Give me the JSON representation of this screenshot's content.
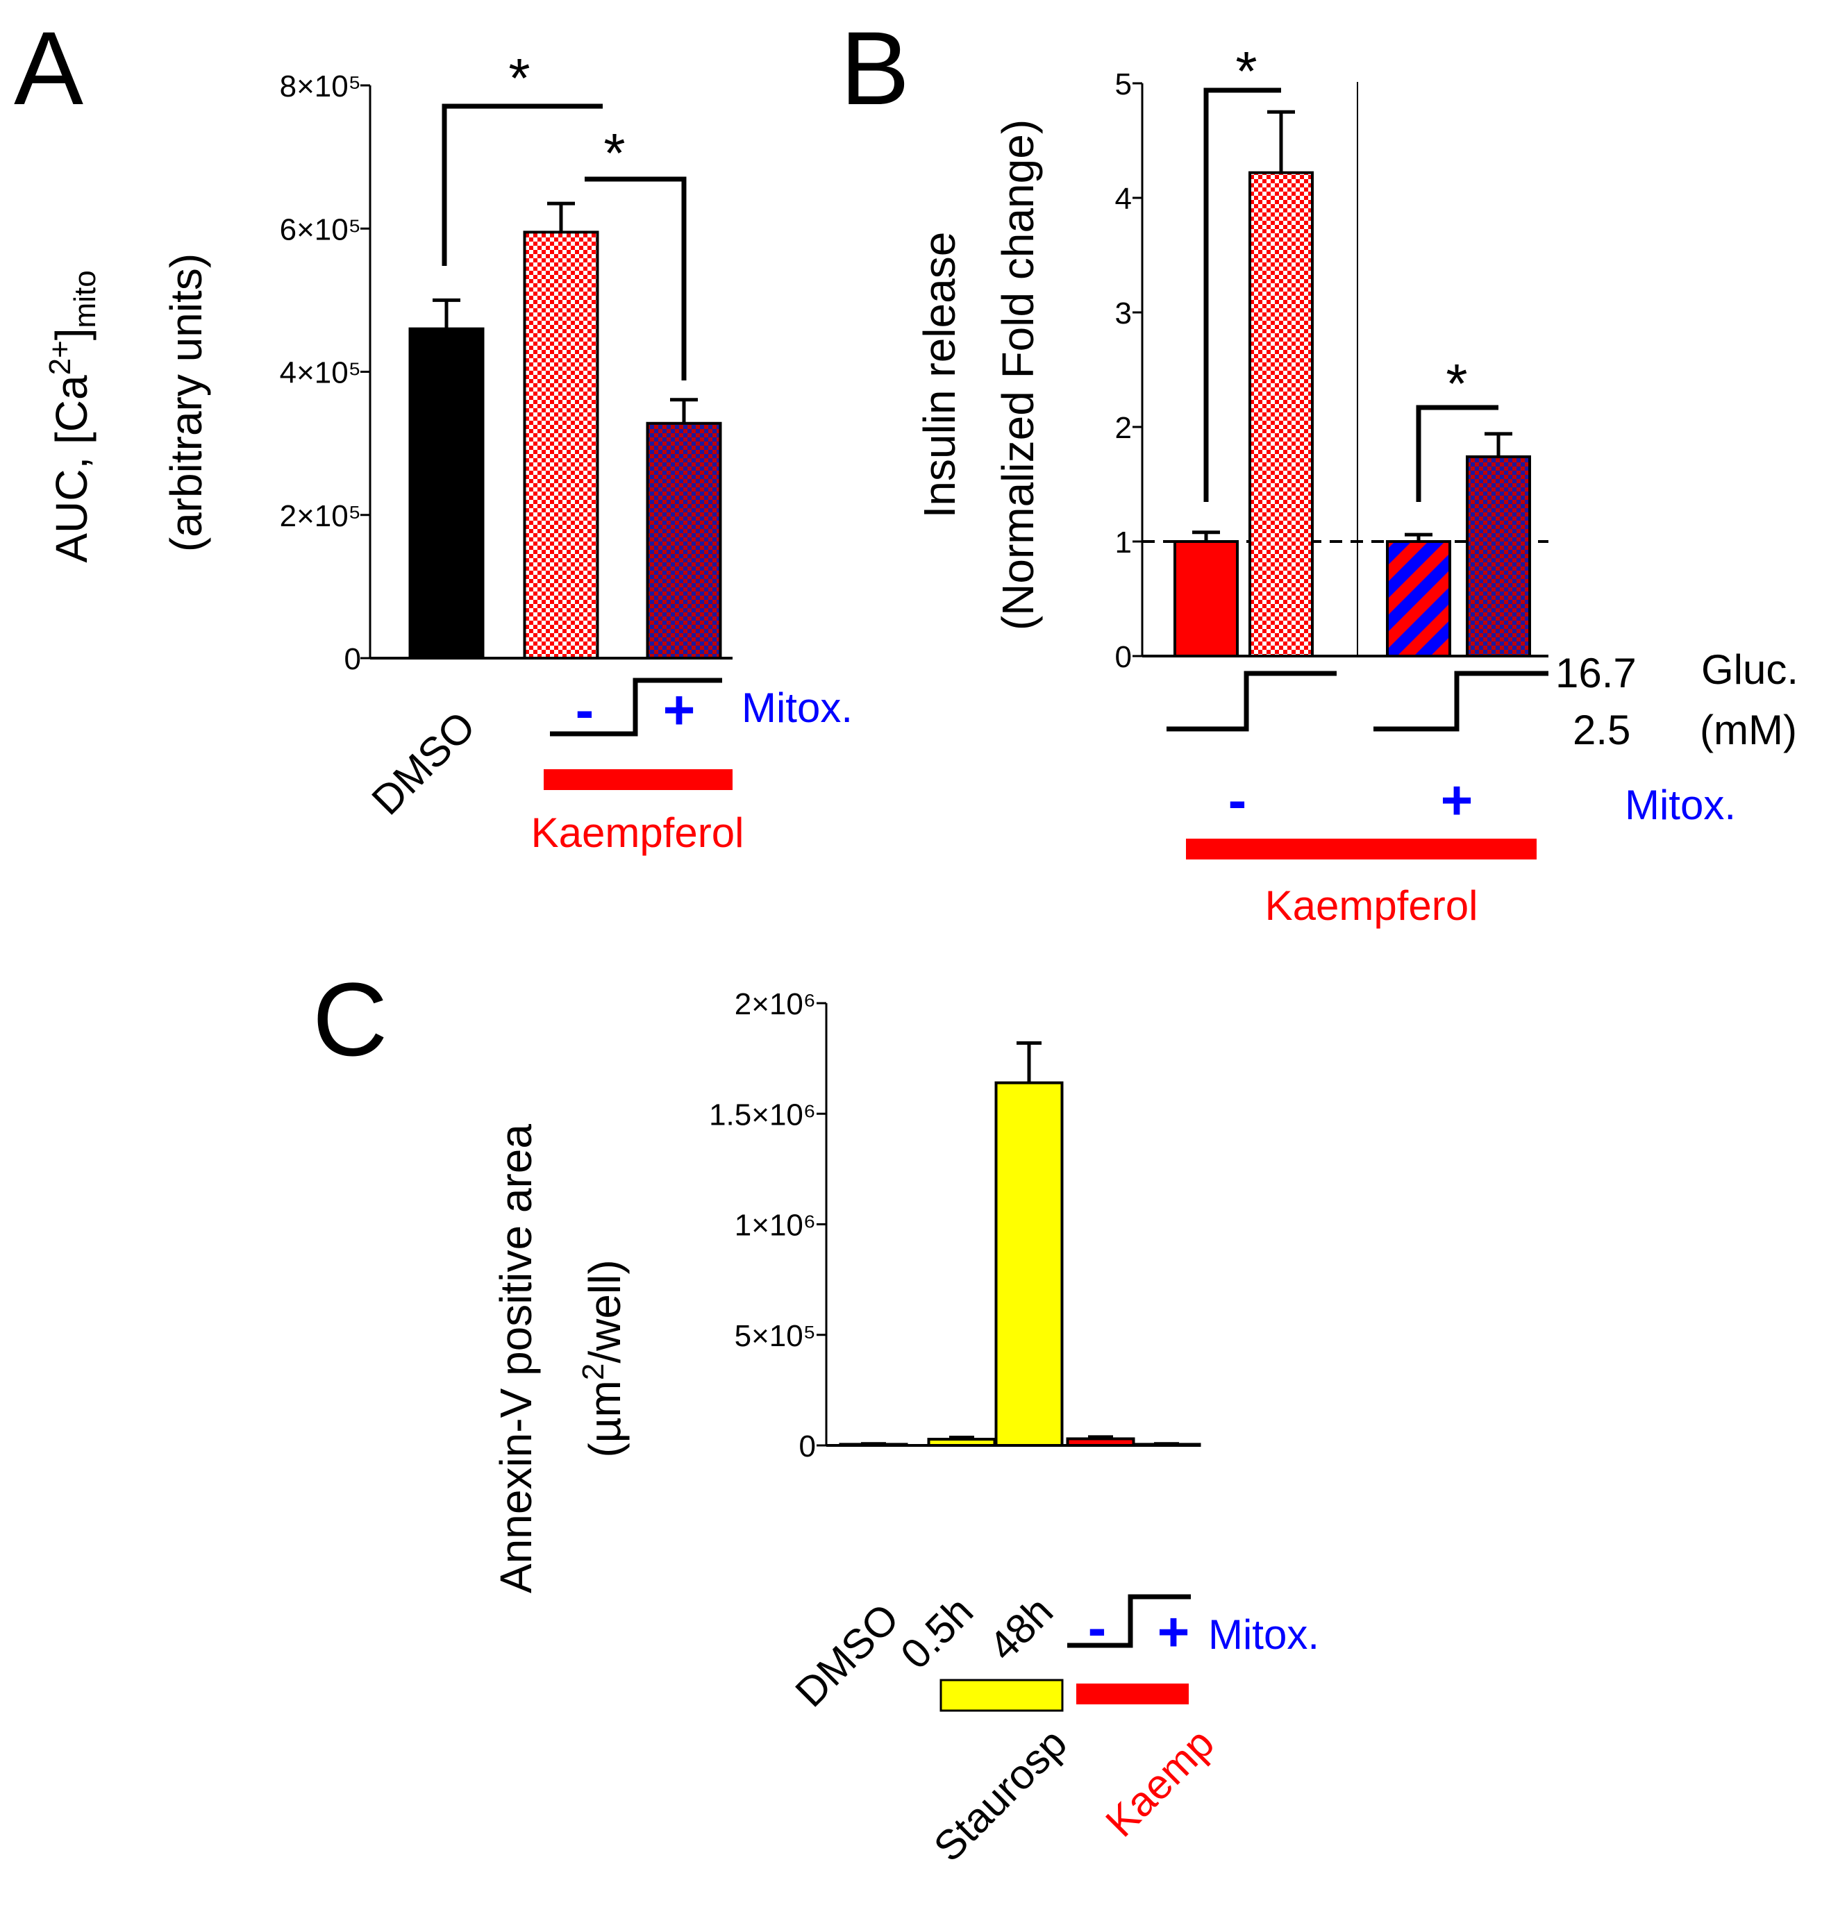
{
  "colors": {
    "black": "#000000",
    "red": "#ff0000",
    "blue": "#0000ff",
    "pink_check": "#ff0000",
    "navy_check": "#3a1a8f",
    "yellow": "#ffff00"
  },
  "chart_data": [
    {
      "panel": "A",
      "type": "bar",
      "ylabel_line1": "AUC, [Ca",
      "ylabel_sup": "2+",
      "ylabel_close": "]",
      "ylabel_sub": "mito",
      "ylabel_line2": "(arbitrary units)",
      "ylim": [
        0,
        800000
      ],
      "yticks": [
        {
          "value": 0,
          "label": "0"
        },
        {
          "value": 200000,
          "label": "2×10⁵"
        },
        {
          "value": 400000,
          "label": "4×10⁵"
        },
        {
          "value": 600000,
          "label": "6×10⁵"
        },
        {
          "value": 800000,
          "label": "8×10⁵"
        }
      ],
      "bars": [
        {
          "name": "DMSO",
          "value": 460000,
          "error": 40000,
          "style": "black"
        },
        {
          "name": "Kaempferol, Mitox. −",
          "value": 595000,
          "error": 40000,
          "style": "pink-check"
        },
        {
          "name": "Kaempferol, Mitox. +",
          "value": 328000,
          "error": 33000,
          "style": "navy-check"
        }
      ],
      "significance": [
        "*",
        "*"
      ],
      "labels": {
        "dmso": "DMSO",
        "minus": "-",
        "plus": "+",
        "mitox": "Mitox.",
        "kaempferol": "Kaempferol"
      }
    },
    {
      "panel": "B",
      "type": "bar",
      "ylabel_line1": "Insulin release",
      "ylabel_line2": "(Normalized Fold change)",
      "ylim": [
        0,
        5
      ],
      "yticks": [
        {
          "value": 0,
          "label": "0"
        },
        {
          "value": 1,
          "label": "1"
        },
        {
          "value": 2,
          "label": "2"
        },
        {
          "value": 3,
          "label": "3"
        },
        {
          "value": 4,
          "label": "4"
        },
        {
          "value": 5,
          "label": "5"
        }
      ],
      "reference_line": 1,
      "bars": [
        {
          "name": "Mitox. −, Gluc. 2.5 mM",
          "value": 1.0,
          "error": 0.08,
          "style": "red"
        },
        {
          "name": "Mitox. −, Gluc. 16.7 mM",
          "value": 4.22,
          "error": 0.53,
          "style": "pink-check"
        },
        {
          "name": "Mitox. +, Gluc. 2.5 mM",
          "value": 1.0,
          "error": 0.06,
          "style": "red-blue-stripe"
        },
        {
          "name": "Mitox. +, Gluc. 16.7 mM",
          "value": 1.74,
          "error": 0.2,
          "style": "navy-check"
        }
      ],
      "significance": [
        "*",
        "*"
      ],
      "labels": {
        "gluc_high": "16.7",
        "gluc_low": "2.5",
        "gluc": "Gluc.",
        "mm": "(mM)",
        "minus": "-",
        "plus": "+",
        "mitox": "Mitox.",
        "kaempferol": "Kaempferol"
      }
    },
    {
      "panel": "C",
      "type": "bar",
      "ylabel_line1": "Annexin-V positive area",
      "ylabel_pre": "(µm",
      "ylabel_sup": "2",
      "ylabel_post": "/well)",
      "ylim": [
        0,
        2000000
      ],
      "yticks": [
        {
          "value": 0,
          "label": "0"
        },
        {
          "value": 500000,
          "label": "5×10⁵"
        },
        {
          "value": 1000000,
          "label": "1×10⁶"
        },
        {
          "value": 1500000,
          "label": "1.5×10⁶"
        },
        {
          "value": 2000000,
          "label": "2×10⁶"
        }
      ],
      "bars": [
        {
          "name": "DMSO",
          "value": 5000,
          "error": 2000,
          "style": "black"
        },
        {
          "name": "Staurosp 0.5h",
          "value": 28000,
          "error": 8000,
          "style": "yellow"
        },
        {
          "name": "Staurosp 48h",
          "value": 1640000,
          "error": 180000,
          "style": "yellow"
        },
        {
          "name": "Kaemp, Mitox. −",
          "value": 30000,
          "error": 8000,
          "style": "red"
        },
        {
          "name": "Kaemp, Mitox. +",
          "value": 5000,
          "error": 2000,
          "style": "black"
        }
      ],
      "labels": {
        "dmso": "DMSO",
        "h05": "0.5h",
        "h48": "48h",
        "minus": "-",
        "plus": "+",
        "mitox": "Mitox.",
        "staurosp": "Staurosp",
        "kaemp": "Kaemp"
      }
    }
  ],
  "panel_letters": {
    "a": "A",
    "b": "B",
    "c": "C"
  }
}
